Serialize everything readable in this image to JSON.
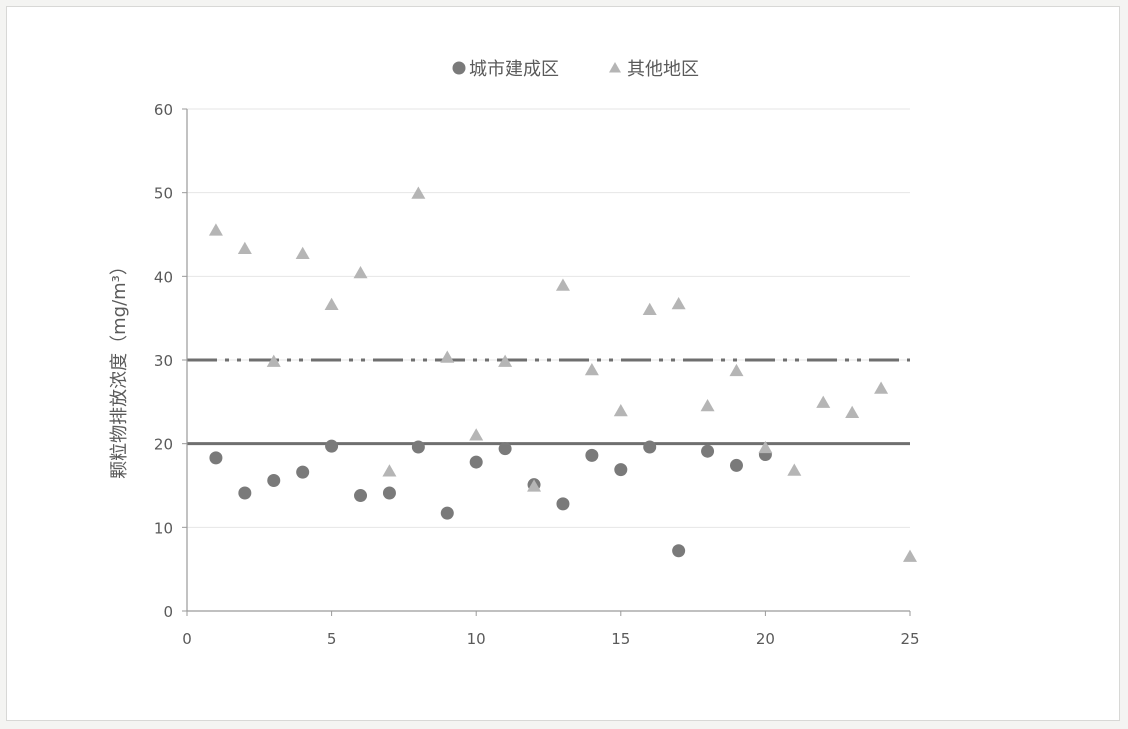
{
  "chart_data": {
    "type": "scatter",
    "title": "",
    "xlabel": "",
    "ylabel": "颗粒物排放浓度（mg/m³）",
    "xlim": [
      0,
      25
    ],
    "ylim": [
      0,
      60
    ],
    "xticks": [
      0,
      5,
      10,
      15,
      20,
      25
    ],
    "yticks": [
      0,
      10,
      20,
      30,
      40,
      50,
      60
    ],
    "grid": true,
    "legend_position": "top",
    "series": [
      {
        "name": "城市建成区",
        "marker": "circle",
        "color": "#7a7a7a",
        "points": [
          [
            1,
            18.3
          ],
          [
            2,
            14.1
          ],
          [
            3,
            15.6
          ],
          [
            4,
            16.6
          ],
          [
            5,
            19.7
          ],
          [
            6,
            13.8
          ],
          [
            7,
            14.1
          ],
          [
            8,
            19.6
          ],
          [
            9,
            11.7
          ],
          [
            10,
            17.8
          ],
          [
            11,
            19.4
          ],
          [
            12,
            15.1
          ],
          [
            13,
            12.8
          ],
          [
            14,
            18.6
          ],
          [
            15,
            16.9
          ],
          [
            16,
            19.6
          ],
          [
            17,
            7.2
          ],
          [
            18,
            19.1
          ],
          [
            19,
            17.4
          ],
          [
            20,
            18.7
          ]
        ]
      },
      {
        "name": "其他地区",
        "marker": "triangle",
        "color": "#b5b5b5",
        "points": [
          [
            1,
            45.5
          ],
          [
            2,
            43.3
          ],
          [
            3,
            29.8
          ],
          [
            4,
            42.7
          ],
          [
            5,
            36.6
          ],
          [
            6,
            40.4
          ],
          [
            7,
            16.7
          ],
          [
            8,
            49.9
          ],
          [
            9,
            30.3
          ],
          [
            10,
            21.0
          ],
          [
            11,
            29.8
          ],
          [
            12,
            14.9
          ],
          [
            13,
            38.9
          ],
          [
            14,
            28.8
          ],
          [
            15,
            23.9
          ],
          [
            16,
            36.0
          ],
          [
            17,
            36.7
          ],
          [
            18,
            24.5
          ],
          [
            19,
            28.7
          ],
          [
            20,
            19.5
          ],
          [
            21,
            16.8
          ],
          [
            22,
            24.9
          ],
          [
            23,
            23.7
          ],
          [
            24,
            26.6
          ],
          [
            25,
            6.5
          ]
        ]
      }
    ],
    "reference_lines": [
      {
        "y": 30,
        "style": "dash-dot-dot",
        "color": "#6f6f6f"
      },
      {
        "y": 20,
        "style": "solid",
        "color": "#6f6f6f"
      }
    ]
  }
}
